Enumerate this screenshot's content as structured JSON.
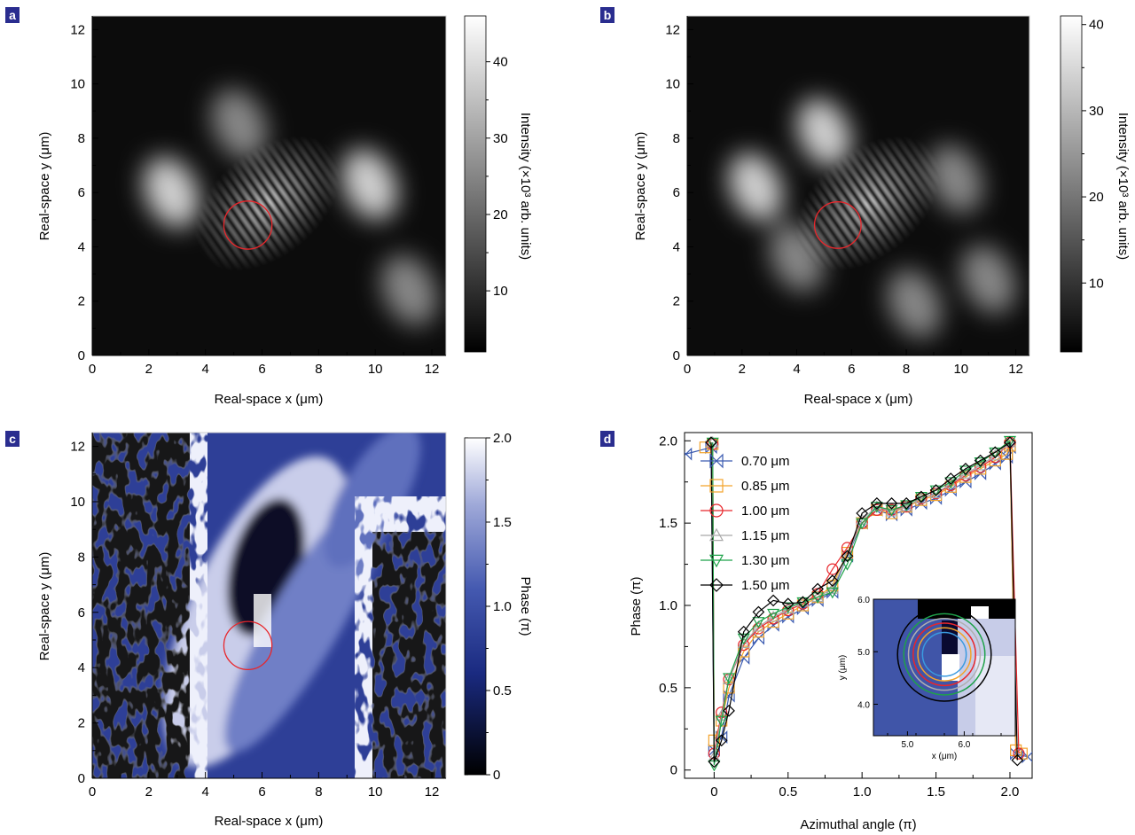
{
  "panels": [
    {
      "id": "a",
      "label": "a"
    },
    {
      "id": "b",
      "label": "b"
    },
    {
      "id": "c",
      "label": "c"
    },
    {
      "id": "d",
      "label": "d"
    }
  ],
  "chart_data": [
    {
      "panel": "a",
      "type": "heatmap",
      "title": "",
      "xlabel": "Real-space x (μm)",
      "ylabel": "Real-space y (μm)",
      "xlim": [
        0,
        12.5
      ],
      "ylim": [
        0,
        12.5
      ],
      "xticks": [
        0,
        2,
        4,
        6,
        8,
        10,
        12
      ],
      "yticks": [
        0,
        2,
        4,
        6,
        8,
        10,
        12
      ],
      "colorbar": {
        "label": "Intensity (×10³ arb. units)",
        "range": [
          2,
          46
        ],
        "ticks": [
          10,
          20,
          30,
          40
        ],
        "colormap": "grayscale"
      },
      "features": {
        "bright_spots_xy": [
          [
            2.8,
            6.0
          ],
          [
            9.8,
            6.3
          ],
          [
            5.2,
            8.5
          ],
          [
            11.2,
            2.4
          ]
        ],
        "fringes_center_xy": [
          6.2,
          5.6
        ],
        "marked_circle": {
          "center": [
            5.5,
            4.8
          ],
          "radius": 0.85,
          "color": "#e8262b"
        }
      }
    },
    {
      "panel": "b",
      "type": "heatmap",
      "title": "",
      "xlabel": "Real-space x (μm)",
      "ylabel": "Real-space y (μm)",
      "xlim": [
        0,
        12.5
      ],
      "ylim": [
        0,
        12.5
      ],
      "xticks": [
        0,
        2,
        4,
        6,
        8,
        10,
        12
      ],
      "yticks": [
        0,
        2,
        4,
        6,
        8,
        10,
        12
      ],
      "colorbar": {
        "label": "Intensity (×10³ arb. units)",
        "range": [
          2,
          41
        ],
        "ticks": [
          10,
          20,
          30,
          40
        ],
        "colormap": "grayscale"
      },
      "features": {
        "bright_spots_xy": [
          [
            2.5,
            6.2
          ],
          [
            5.0,
            8.2
          ],
          [
            9.8,
            6.5
          ],
          [
            4.0,
            3.6
          ],
          [
            8.3,
            1.9
          ],
          [
            11.0,
            2.8
          ]
        ],
        "fringes_center_xy": [
          6.6,
          5.6
        ],
        "marked_circle": {
          "center": [
            5.5,
            4.8
          ],
          "radius": 0.85,
          "color": "#e8262b"
        }
      }
    },
    {
      "panel": "c",
      "type": "heatmap",
      "title": "",
      "xlabel": "Real-space x (μm)",
      "ylabel": "Real-space y (μm)",
      "xlim": [
        0,
        12.5
      ],
      "ylim": [
        0,
        12.5
      ],
      "xticks": [
        0,
        2,
        4,
        6,
        8,
        10,
        12
      ],
      "yticks": [
        0,
        2,
        4,
        6,
        8,
        10,
        12
      ],
      "colorbar": {
        "label": "Phase (π)",
        "range": [
          0,
          2.0
        ],
        "ticks": [
          0,
          0.5,
          1.0,
          1.5,
          2.0
        ],
        "tick_labels": [
          "0",
          "0.5",
          "1.0",
          "1.5",
          "2.0"
        ],
        "colormap": "black-blue-white"
      },
      "features": {
        "vortex_core_xy": [
          5.6,
          4.9
        ],
        "marked_circle": {
          "center": [
            5.5,
            4.8
          ],
          "radius": 0.85,
          "color": "#e8262b"
        }
      }
    },
    {
      "panel": "d",
      "type": "line",
      "title": "",
      "xlabel": "Azimuthal angle (π)",
      "ylabel": "Phase (π)",
      "xlim": [
        -0.2,
        2.15
      ],
      "ylim": [
        -0.05,
        2.05
      ],
      "xticks": [
        0,
        0.5,
        1.0,
        1.5,
        2.0
      ],
      "xtick_labels": [
        "0",
        "0.5",
        "1.0",
        "1.5",
        "2.0"
      ],
      "yticks": [
        0,
        0.5,
        1.0,
        1.5,
        2.0
      ],
      "ytick_labels": [
        "0",
        "0.5",
        "1.0",
        "1.5",
        "2.0"
      ],
      "legend_position": "top-left",
      "series": [
        {
          "name": "0.70 μm",
          "color": "#3a5ab0",
          "marker": "bowtie",
          "x": [
            -0.19,
            -0.02,
            0,
            0.05,
            0.1,
            0.2,
            0.3,
            0.4,
            0.5,
            0.6,
            0.7,
            0.8,
            0.9,
            1.0,
            1.1,
            1.2,
            1.3,
            1.4,
            1.5,
            1.6,
            1.7,
            1.8,
            1.9,
            1.98,
            2.0,
            2.04,
            2.12
          ],
          "y": [
            1.92,
            1.96,
            0.12,
            0.2,
            0.45,
            0.68,
            0.8,
            0.88,
            0.93,
            0.98,
            1.03,
            1.08,
            1.3,
            1.5,
            1.58,
            1.55,
            1.58,
            1.62,
            1.65,
            1.7,
            1.75,
            1.8,
            1.86,
            1.9,
            1.96,
            0.1,
            0.08
          ]
        },
        {
          "name": "0.85 μm",
          "color": "#f3a32b",
          "marker": "square",
          "x": [
            -0.06,
            -0.01,
            0,
            0.05,
            0.1,
            0.2,
            0.3,
            0.4,
            0.5,
            0.6,
            0.7,
            0.8,
            0.9,
            1.0,
            1.1,
            1.2,
            1.3,
            1.4,
            1.5,
            1.6,
            1.7,
            1.8,
            1.9,
            1.98,
            2.0,
            2.04,
            2.08
          ],
          "y": [
            1.96,
            1.98,
            0.18,
            0.3,
            0.5,
            0.72,
            0.84,
            0.9,
            0.95,
            1.0,
            1.05,
            1.12,
            1.32,
            1.5,
            1.58,
            1.56,
            1.6,
            1.64,
            1.67,
            1.72,
            1.78,
            1.83,
            1.88,
            1.92,
            1.97,
            0.12,
            0.1
          ]
        },
        {
          "name": "1.00 μm",
          "color": "#e8262b",
          "marker": "circle",
          "x": [
            -0.01,
            0,
            0.05,
            0.1,
            0.2,
            0.3,
            0.4,
            0.5,
            0.6,
            0.7,
            0.8,
            0.9,
            1.0,
            1.1,
            1.2,
            1.3,
            1.4,
            1.5,
            1.6,
            1.7,
            1.8,
            1.9,
            2.0,
            2.06
          ],
          "y": [
            1.98,
            0.1,
            0.35,
            0.55,
            0.76,
            0.86,
            0.92,
            0.97,
            1.01,
            1.07,
            1.22,
            1.35,
            1.5,
            1.58,
            1.58,
            1.6,
            1.65,
            1.68,
            1.73,
            1.79,
            1.84,
            1.9,
            1.99,
            0.1
          ]
        },
        {
          "name": "1.15 μm",
          "color": "#a9a9a9",
          "marker": "triangle-up",
          "x": [
            -0.01,
            0,
            0.05,
            0.1,
            0.2,
            0.3,
            0.4,
            0.5,
            0.6,
            0.7,
            0.8,
            0.9,
            1.0,
            1.1,
            1.2,
            1.3,
            1.4,
            1.5,
            1.6,
            1.7,
            1.8,
            1.9,
            2.0
          ],
          "y": [
            1.99,
            0.08,
            0.33,
            0.55,
            0.77,
            0.87,
            0.93,
            0.98,
            1.02,
            1.05,
            1.1,
            1.3,
            1.52,
            1.6,
            1.57,
            1.6,
            1.65,
            1.68,
            1.74,
            1.8,
            1.85,
            1.91,
            1.99
          ]
        },
        {
          "name": "1.30 μm",
          "color": "#1fa24a",
          "marker": "triangle-down",
          "x": [
            -0.01,
            0,
            0.05,
            0.1,
            0.2,
            0.3,
            0.4,
            0.5,
            0.6,
            0.7,
            0.8,
            0.9,
            1.0,
            1.1,
            1.2,
            1.3,
            1.4,
            1.5,
            1.6,
            1.7,
            1.8,
            1.9,
            2.0
          ],
          "y": [
            1.99,
            0.03,
            0.3,
            0.56,
            0.8,
            0.9,
            0.95,
            0.99,
            1.02,
            1.05,
            1.08,
            1.25,
            1.5,
            1.6,
            1.58,
            1.61,
            1.66,
            1.7,
            1.75,
            1.82,
            1.87,
            1.93,
            2.0
          ]
        },
        {
          "name": "1.50 μm",
          "color": "#000000",
          "marker": "diamond",
          "x": [
            -0.02,
            0,
            0.05,
            0.1,
            0.2,
            0.3,
            0.4,
            0.5,
            0.6,
            0.7,
            0.8,
            0.9,
            1.0,
            1.1,
            1.2,
            1.3,
            1.4,
            1.5,
            1.6,
            1.7,
            1.8,
            1.9,
            2.0,
            2.05
          ],
          "y": [
            1.99,
            0.05,
            0.18,
            0.36,
            0.84,
            0.96,
            1.03,
            1.01,
            1.02,
            1.1,
            1.15,
            1.3,
            1.56,
            1.62,
            1.62,
            1.62,
            1.66,
            1.7,
            1.77,
            1.83,
            1.88,
            1.93,
            1.99,
            0.06
          ]
        }
      ],
      "inset": {
        "type": "heatmap",
        "xlabel": "x (μm)",
        "ylabel": "y (μm)",
        "xlim": [
          4.4,
          6.9
        ],
        "ylim": [
          3.4,
          6.0
        ],
        "xticks": [
          5.0,
          6.0
        ],
        "xtick_labels": [
          "5.0",
          "6.0"
        ],
        "yticks": [
          4.0,
          5.0,
          6.0
        ],
        "ytick_labels": [
          "4.0",
          "5.0",
          "6.0"
        ],
        "circles": [
          {
            "radius": 0.7,
            "color": "#3a9adf"
          },
          {
            "radius": 0.85,
            "color": "#f3a32b"
          },
          {
            "radius": 1.0,
            "color": "#e8262b"
          },
          {
            "radius": 1.15,
            "color": "#b0b0b0"
          },
          {
            "radius": 1.3,
            "color": "#1fa24a"
          },
          {
            "radius": 1.5,
            "color": "#000000"
          }
        ],
        "circle_center": [
          5.65,
          4.95
        ]
      }
    }
  ]
}
